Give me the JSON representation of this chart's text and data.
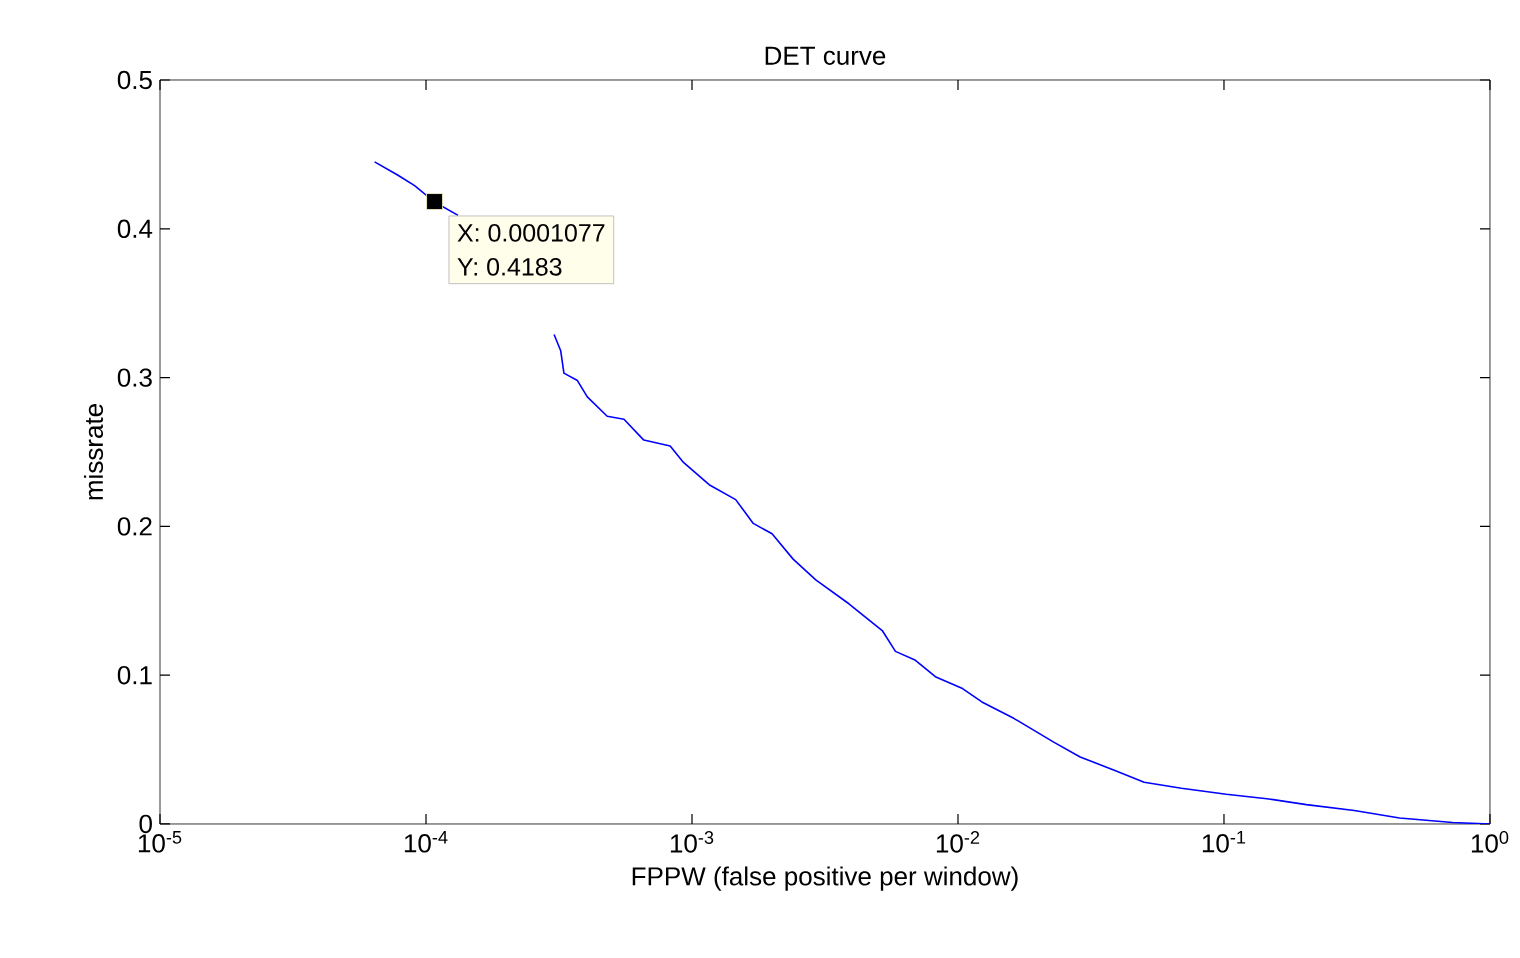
{
  "chart_data": {
    "type": "line",
    "title": "DET curve",
    "xlabel": "FPPW (false positive per window)",
    "ylabel": "missrate",
    "log": "x",
    "grid": false,
    "marker": "none",
    "line_style": "solid",
    "xlim": [
      1e-05,
      1
    ],
    "ylim": [
      0,
      0.5
    ],
    "xticks": [
      {
        "value": 1e-05,
        "label": "10$^{-5}$"
      },
      {
        "value": 0.0001,
        "label": "10$^{-4}$"
      },
      {
        "value": 0.001,
        "label": "10$^{-3}$"
      },
      {
        "value": 0.01,
        "label": "10$^{-2}$"
      },
      {
        "value": 0.1,
        "label": "10$^{-1}$"
      },
      {
        "value": 1,
        "label": "10$^{0}$"
      }
    ],
    "yticks": [
      0,
      0.1,
      0.2,
      0.3,
      0.4,
      0.5
    ],
    "x": [
      6.41e-05,
      7.85e-05,
      9.06e-05,
      0.0001077,
      0.000132,
      0.0002,
      0.000303,
      0.000321,
      0.00033,
      0.000371,
      0.000404,
      0.00048,
      0.000555,
      0.000659,
      0.000828,
      0.000929,
      0.00116,
      0.00146,
      0.0017,
      0.002,
      0.0024,
      0.00292,
      0.00389,
      0.00519,
      0.00582,
      0.00692,
      0.00822,
      0.0104,
      0.0123,
      0.0162,
      0.0229,
      0.0288,
      0.0389,
      0.0501,
      0.0692,
      0.102,
      0.145,
      0.204,
      0.309,
      0.457,
      0.724,
      1
    ],
    "series": [
      {
        "color": "#0000ff",
        "values": [
          0.445,
          0.436,
          0.429,
          0.418,
          0.409,
          null,
          0.329,
          0.318,
          0.303,
          0.298,
          0.287,
          0.274,
          0.272,
          0.258,
          0.254,
          0.243,
          0.228,
          0.218,
          0.202,
          0.195,
          0.178,
          0.164,
          0.148,
          0.13,
          0.116,
          0.11,
          0.099,
          0.091,
          0.082,
          0.071,
          0.055,
          0.045,
          0.036,
          0.028,
          0.024,
          0.02,
          0.017,
          0.013,
          0.009,
          0.004,
          0.001,
          0
        ]
      }
    ],
    "annotations": [
      {
        "text": "X: 0.0001077",
        "x": 0.0001077,
        "y": 0.4183
      },
      "Y: 0.4183"
    ]
  }
}
